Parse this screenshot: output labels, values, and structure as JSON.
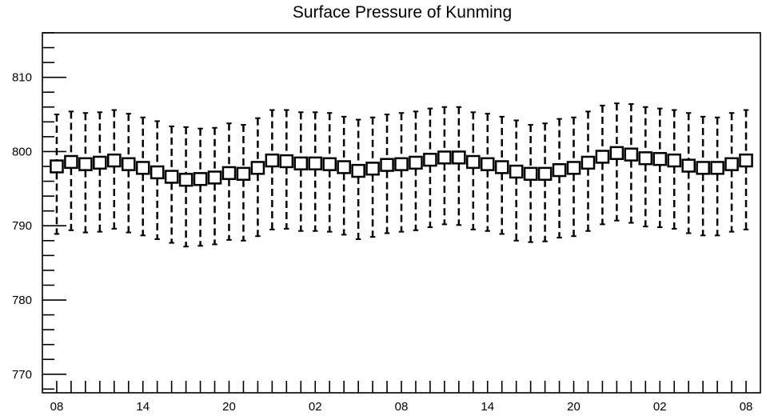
{
  "chart_data": {
    "type": "boxplot",
    "title": "Surface Pressure of Kunming",
    "xlabel": "",
    "ylabel": "",
    "ylim": [
      767.5,
      816
    ],
    "xlim": [
      -1,
      49
    ],
    "y_ticks": [
      770,
      780,
      790,
      800,
      810
    ],
    "x_tick_labels": [
      {
        "x": 0,
        "label": "08"
      },
      {
        "x": 6,
        "label": "14"
      },
      {
        "x": 12,
        "label": "20"
      },
      {
        "x": 18,
        "label": "02"
      },
      {
        "x": 24,
        "label": "08"
      },
      {
        "x": 30,
        "label": "14"
      },
      {
        "x": 36,
        "label": "20"
      },
      {
        "x": 42,
        "label": "02"
      },
      {
        "x": 48,
        "label": "08"
      }
    ],
    "x": [
      0,
      1,
      2,
      3,
      4,
      5,
      6,
      7,
      8,
      9,
      10,
      11,
      12,
      13,
      14,
      15,
      16,
      17,
      18,
      19,
      20,
      21,
      22,
      23,
      24,
      25,
      26,
      27,
      28,
      29,
      30,
      31,
      32,
      33,
      34,
      35,
      36,
      37,
      38,
      39,
      40,
      41,
      42,
      43,
      44,
      45,
      46,
      47,
      48
    ],
    "center": [
      798.0,
      798.6,
      798.3,
      798.5,
      798.8,
      798.3,
      797.8,
      797.2,
      796.6,
      796.2,
      796.3,
      796.5,
      797.1,
      797.0,
      797.8,
      798.8,
      798.7,
      798.4,
      798.4,
      798.3,
      797.9,
      797.4,
      797.7,
      798.2,
      798.3,
      798.5,
      798.9,
      799.2,
      799.2,
      798.6,
      798.3,
      797.9,
      797.3,
      797.0,
      797.0,
      797.5,
      797.8,
      798.5,
      799.3,
      799.8,
      799.6,
      799.1,
      799.0,
      798.8,
      798.1,
      797.8,
      797.8,
      798.3,
      798.8
    ],
    "whisker_high": [
      805.0,
      805.4,
      805.2,
      805.3,
      805.6,
      805.1,
      804.6,
      804.1,
      803.4,
      803.3,
      803.1,
      803.2,
      803.8,
      803.6,
      804.5,
      805.6,
      805.6,
      805.3,
      805.3,
      805.2,
      804.7,
      804.3,
      804.6,
      805.0,
      805.2,
      805.4,
      805.8,
      806.0,
      806.0,
      805.3,
      805.1,
      804.7,
      804.2,
      803.6,
      803.8,
      804.4,
      804.6,
      805.4,
      806.2,
      806.5,
      806.4,
      806.0,
      805.8,
      805.6,
      805.2,
      804.7,
      804.6,
      805.2,
      805.6
    ],
    "whisker_low": [
      788.9,
      789.4,
      789.1,
      789.2,
      789.6,
      789.1,
      788.7,
      788.2,
      787.7,
      787.2,
      787.3,
      787.5,
      788.1,
      788.0,
      788.6,
      789.5,
      789.6,
      789.3,
      789.3,
      789.2,
      788.8,
      788.2,
      788.5,
      789.0,
      789.2,
      789.4,
      789.8,
      790.2,
      790.1,
      789.5,
      789.3,
      788.9,
      788.0,
      787.8,
      787.9,
      788.4,
      788.6,
      789.3,
      790.2,
      790.7,
      790.4,
      789.9,
      789.8,
      789.6,
      789.0,
      788.7,
      788.7,
      789.2,
      789.5
    ],
    "box_size": 1.6,
    "grid": false,
    "legend": "none"
  }
}
